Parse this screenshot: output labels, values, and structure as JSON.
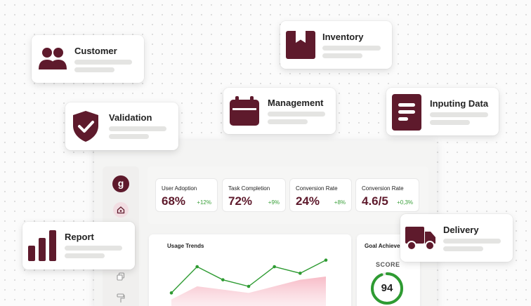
{
  "colors": {
    "brand": "#5e1a2c",
    "positive": "#3aa03a",
    "chart_line": "#2e9b32",
    "chart_fill": "#f7b8c4"
  },
  "floating_cards": {
    "customer": {
      "title": "Customer",
      "icon": "users-icon"
    },
    "inventory": {
      "title": "Inventory",
      "icon": "box-icon"
    },
    "validation": {
      "title": "Validation",
      "icon": "shield-check-icon"
    },
    "management": {
      "title": "Management",
      "icon": "calendar-icon"
    },
    "inputing_data": {
      "title": "Inputing Data",
      "icon": "document-lines-icon"
    },
    "report": {
      "title": "Report",
      "icon": "bar-chart-icon"
    },
    "delivery": {
      "title": "Delivery",
      "icon": "truck-icon"
    }
  },
  "sidebar": {
    "logo_letter": "g",
    "icons": [
      "home-icon",
      "copy-icon",
      "paint-roller-icon"
    ]
  },
  "metrics": [
    {
      "label": "User Adoption",
      "value": "68%",
      "delta": "+12%"
    },
    {
      "label": "Task Completion",
      "value": "72%",
      "delta": "+9%"
    },
    {
      "label": "Conversion Rate",
      "value": "24%",
      "delta": "+8%"
    },
    {
      "label": "Conversion Rate",
      "value": "4.6/5",
      "delta": "+0,3%"
    }
  ],
  "usage_trends": {
    "title": "Usage Trends"
  },
  "goal": {
    "title": "Goal Achiever",
    "score_label": "SCORE",
    "score": "94",
    "score_fraction": 0.94
  },
  "chart_data": {
    "type": "line",
    "title": "Usage Trends",
    "xlabel": "",
    "ylabel": "",
    "grid": false,
    "legend": "none",
    "series": [
      {
        "values": [
          2,
          6,
          4,
          3,
          6,
          5,
          7
        ]
      },
      {
        "values": [
          1,
          3,
          2.5,
          2,
          3,
          4,
          4.5
        ]
      }
    ]
  }
}
